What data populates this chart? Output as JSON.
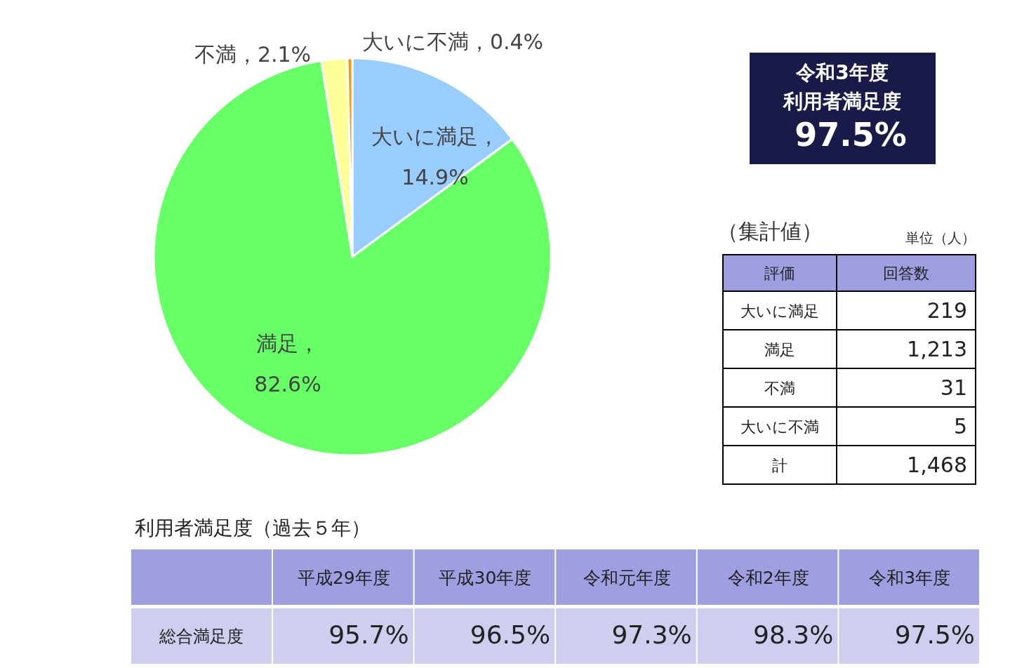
{
  "chart_data": [
    {
      "type": "pie",
      "categories": [
        "大いに満足",
        "満足",
        "不満",
        "大いに不満"
      ],
      "values": [
        14.9,
        82.6,
        2.1,
        0.4
      ],
      "colors": [
        "#99ccff",
        "#66ff66",
        "#ffff99",
        "#ff9900"
      ],
      "value_labels": [
        "，\n14.9%",
        "，\n82.6%",
        "，2.1%",
        "，0.4%"
      ]
    },
    {
      "type": "other",
      "title": "令和3年度",
      "subtitle": "利用者満足度",
      "values": [
        97.5
      ],
      "value_labels": [
        "97.5%"
      ],
      "color": "#1a1a48"
    },
    {
      "type": "other",
      "title": "（集計値）",
      "subtitle": "単位（人）",
      "annotations": [
        "評価",
        "回答数"
      ],
      "categories": [
        "大いに満足",
        "満足",
        "不満",
        "大いに不満",
        "計"
      ],
      "values": [
        219,
        1213,
        31,
        5,
        1468
      ],
      "value_labels": [
        "219",
        "1,213",
        "31",
        "5",
        "1,468"
      ]
    },
    {
      "type": "other",
      "title": "利用者満足度（過去５年）",
      "annotations": [
        "総合満足度"
      ],
      "categories": [
        "平成29年度",
        "平成30年度",
        "令和元年度",
        "令和2年度",
        "令和3年度"
      ],
      "values": [
        95.7,
        96.5,
        97.3,
        98.3,
        97.5
      ],
      "value_labels": [
        "95.7%",
        "96.5%",
        "97.3%",
        "98.3%",
        "97.5%"
      ],
      "color": "#9e9ee0"
    }
  ]
}
